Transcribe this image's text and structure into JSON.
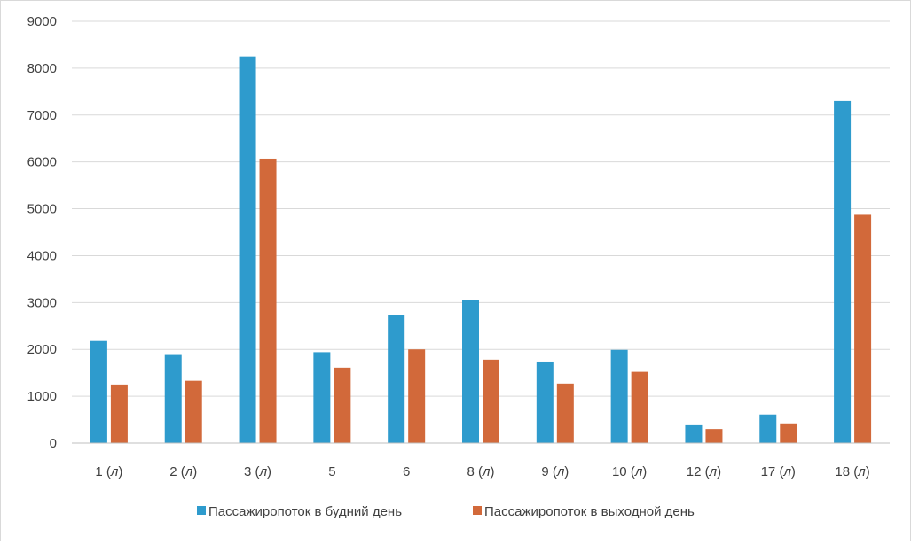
{
  "chart_data": {
    "type": "bar",
    "title": "",
    "xlabel": "",
    "ylabel": "",
    "ylim": [
      0,
      9000
    ],
    "y_ticks": [
      "0",
      "1000",
      "2000",
      "3000",
      "4000",
      "5000",
      "6000",
      "7000",
      "8000",
      "9000"
    ],
    "grid": true,
    "legend_position": "bottom",
    "categories": [
      {
        "main": "1",
        "suffix": "л"
      },
      {
        "main": "2",
        "suffix": "л"
      },
      {
        "main": "3",
        "suffix": "л"
      },
      {
        "main": "5",
        "suffix": ""
      },
      {
        "main": "6",
        "suffix": ""
      },
      {
        "main": "8",
        "suffix": "л"
      },
      {
        "main": "9",
        "suffix": "л"
      },
      {
        "main": "10",
        "suffix": "л"
      },
      {
        "main": "12",
        "suffix": "л"
      },
      {
        "main": "17",
        "suffix": "л"
      },
      {
        "main": "18",
        "suffix": "л"
      }
    ],
    "series": [
      {
        "name": "Пассажиропоток в будний день",
        "color": "#2e9bcd",
        "values": [
          2180,
          1880,
          8250,
          1940,
          2730,
          3050,
          1740,
          1990,
          380,
          610,
          7300
        ]
      },
      {
        "name": "Пассажиропоток в выходной день",
        "color": "#d2693a",
        "values": [
          1250,
          1330,
          6070,
          1610,
          2000,
          1780,
          1270,
          1520,
          300,
          420,
          4870
        ]
      }
    ]
  }
}
